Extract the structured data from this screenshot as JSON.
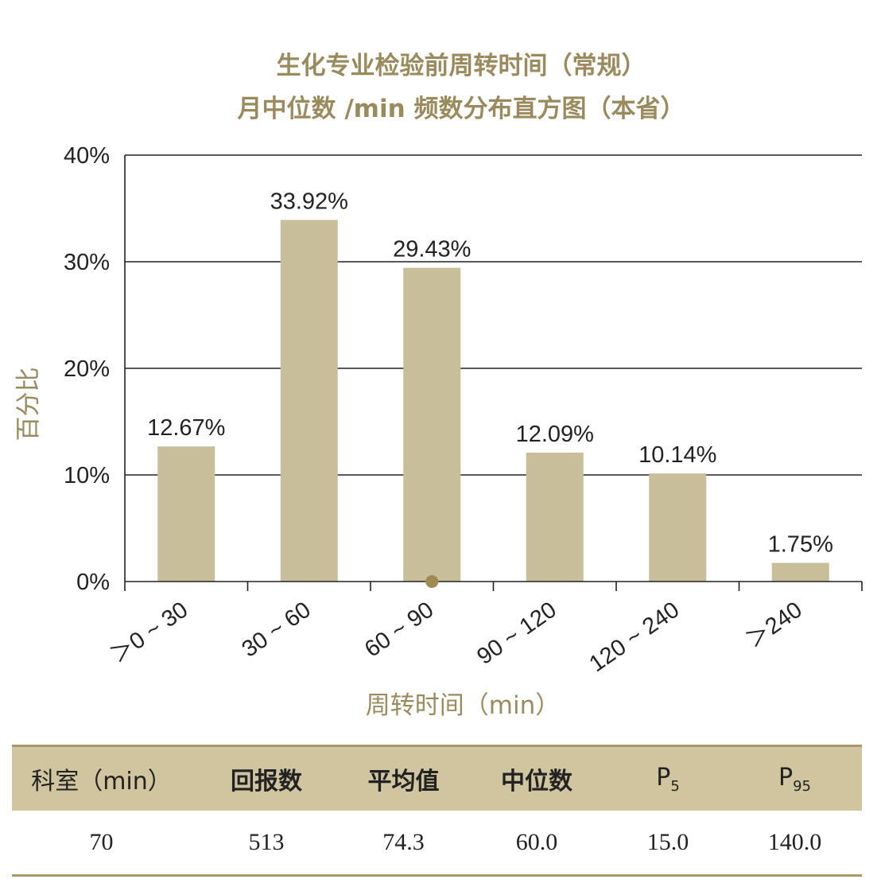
{
  "chart_data": {
    "type": "bar",
    "title_line1": "生化专业检验前周转时间（常规）",
    "title_line2": "月中位数 /min 频数分布直方图（本省）",
    "xlabel": "周转时间（min）",
    "ylabel": "百分比",
    "categories": [
      "＞0 ~ 30",
      "30 ~ 60",
      "60 ~ 90",
      "90 ~ 120",
      "120 ~ 240",
      "＞240"
    ],
    "values": [
      12.67,
      33.92,
      29.43,
      12.09,
      10.14,
      1.75
    ],
    "data_labels": [
      "12.67%",
      "33.92%",
      "29.43%",
      "12.09%",
      "10.14%",
      "1.75%"
    ],
    "yticks": [
      "0%",
      "10%",
      "20%",
      "30%",
      "40%"
    ],
    "ytick_values": [
      0,
      10,
      20,
      30,
      40
    ],
    "ylim": [
      0,
      40
    ],
    "median_marker": 60.0,
    "grid": true,
    "bar_color": "#c9be9a",
    "marker_color": "#a08a50",
    "title_color": "#9b8a5c"
  },
  "table": {
    "headers": {
      "dept": "科室（min）",
      "reports": "回报数",
      "mean": "平均值",
      "median": "中位数",
      "p5_main": "P",
      "p5_sub": "5",
      "p95_main": "P",
      "p95_sub": "95"
    },
    "row": {
      "dept": "70",
      "reports": "513",
      "mean": "74.3",
      "median": "60.0",
      "p5": "15.0",
      "p95": "140.0"
    }
  }
}
